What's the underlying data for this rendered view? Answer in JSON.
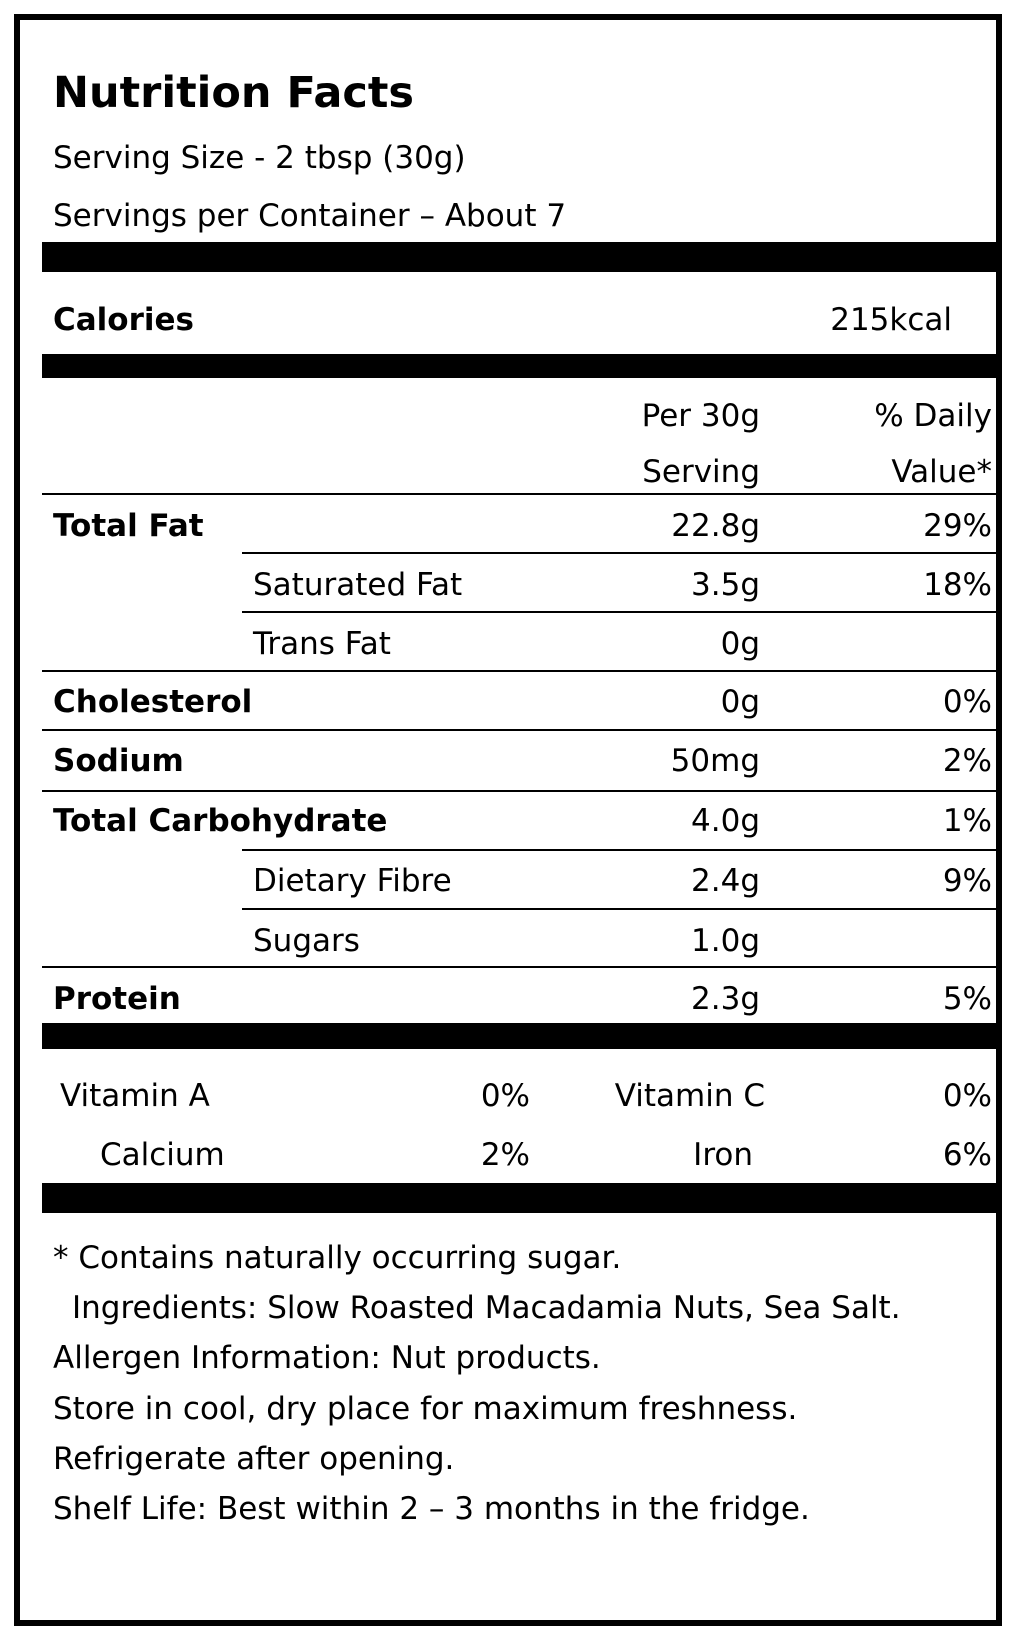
{
  "label": {
    "title": "Nutrition Facts",
    "serving_size": "Serving Size - 2 tbsp (30g)",
    "servings_per_container": "Servings per Container – About 7",
    "calories": {
      "name": "Calories",
      "value": "215kcal"
    },
    "column_headers": {
      "per_serving_line1": "Per 30g",
      "per_serving_line2": "Serving",
      "daily_value_line1": "% Daily",
      "daily_value_line2": "Value*"
    },
    "nutrients": [
      {
        "name": "Total Fat",
        "amount": "22.8g",
        "dv": "29%"
      },
      {
        "name": "Saturated Fat",
        "amount": "3.5g",
        "dv": "18%"
      },
      {
        "name": "Trans Fat",
        "amount": "0g",
        "dv": ""
      },
      {
        "name": "Cholesterol",
        "amount": "0g",
        "dv": "0%"
      },
      {
        "name": "Sodium",
        "amount": "50mg",
        "dv": "2%"
      },
      {
        "name": "Total Carbohydrate",
        "amount": "4.0g",
        "dv": "1%"
      },
      {
        "name": "Dietary Fibre",
        "amount": "2.4g",
        "dv": "9%"
      },
      {
        "name": "Sugars",
        "amount": "1.0g",
        "dv": ""
      },
      {
        "name": "Protein",
        "amount": "2.3g",
        "dv": "5%"
      }
    ],
    "vitamins": [
      {
        "name": "Vitamin A",
        "dv": "0%"
      },
      {
        "name": "Vitamin C",
        "dv": "0%"
      },
      {
        "name": "Calcium",
        "dv": "2%"
      },
      {
        "name": "Iron",
        "dv": "6%"
      }
    ],
    "footnotes": [
      "* Contains naturally occurring sugar.",
      "Ingredients: Slow Roasted Macadamia Nuts, Sea Salt.",
      "Allergen Information: Nut products.",
      "Store in cool, dry place for maximum freshness.",
      "Refrigerate after opening.",
      "Shelf Life: Best within 2 – 3 months in the fridge."
    ]
  }
}
